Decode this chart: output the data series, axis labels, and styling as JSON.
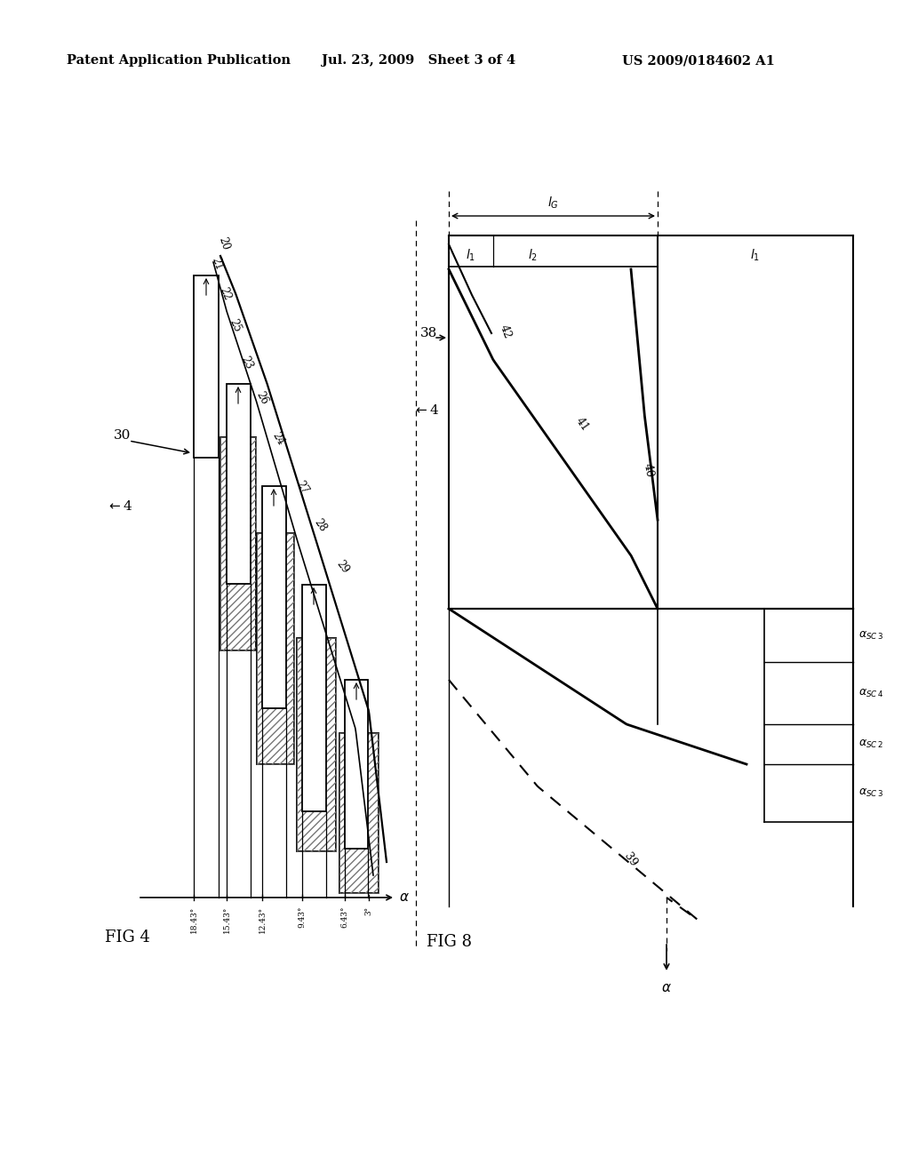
{
  "header_left": "Patent Application Publication",
  "header_mid": "Jul. 23, 2009   Sheet 3 of 4",
  "header_right": "US 2009/0184602 A1",
  "fig4_label": "FIG 4",
  "fig8_label": "FIG 8",
  "background": "#ffffff",
  "line_color": "#000000",
  "x_ticks_fig4": [
    "18.43°",
    "15.43°",
    "12.43°",
    "9.43°",
    "6.43°",
    "3°"
  ],
  "fig4_stair_labels": [
    "22",
    "25",
    "23",
    "26",
    "24",
    "27",
    "28",
    "29"
  ],
  "fig4_curve_labels": [
    "20",
    "21"
  ],
  "fig8_top_labels": [
    "l₁",
    "lG",
    "l₂",
    "l₁"
  ],
  "fig8_curve_labels": [
    "42",
    "41",
    "40",
    "39"
  ],
  "fig8_alpha_labels": [
    "α_sc3",
    "α_sc4",
    "α_sc2",
    "α_sc3"
  ]
}
